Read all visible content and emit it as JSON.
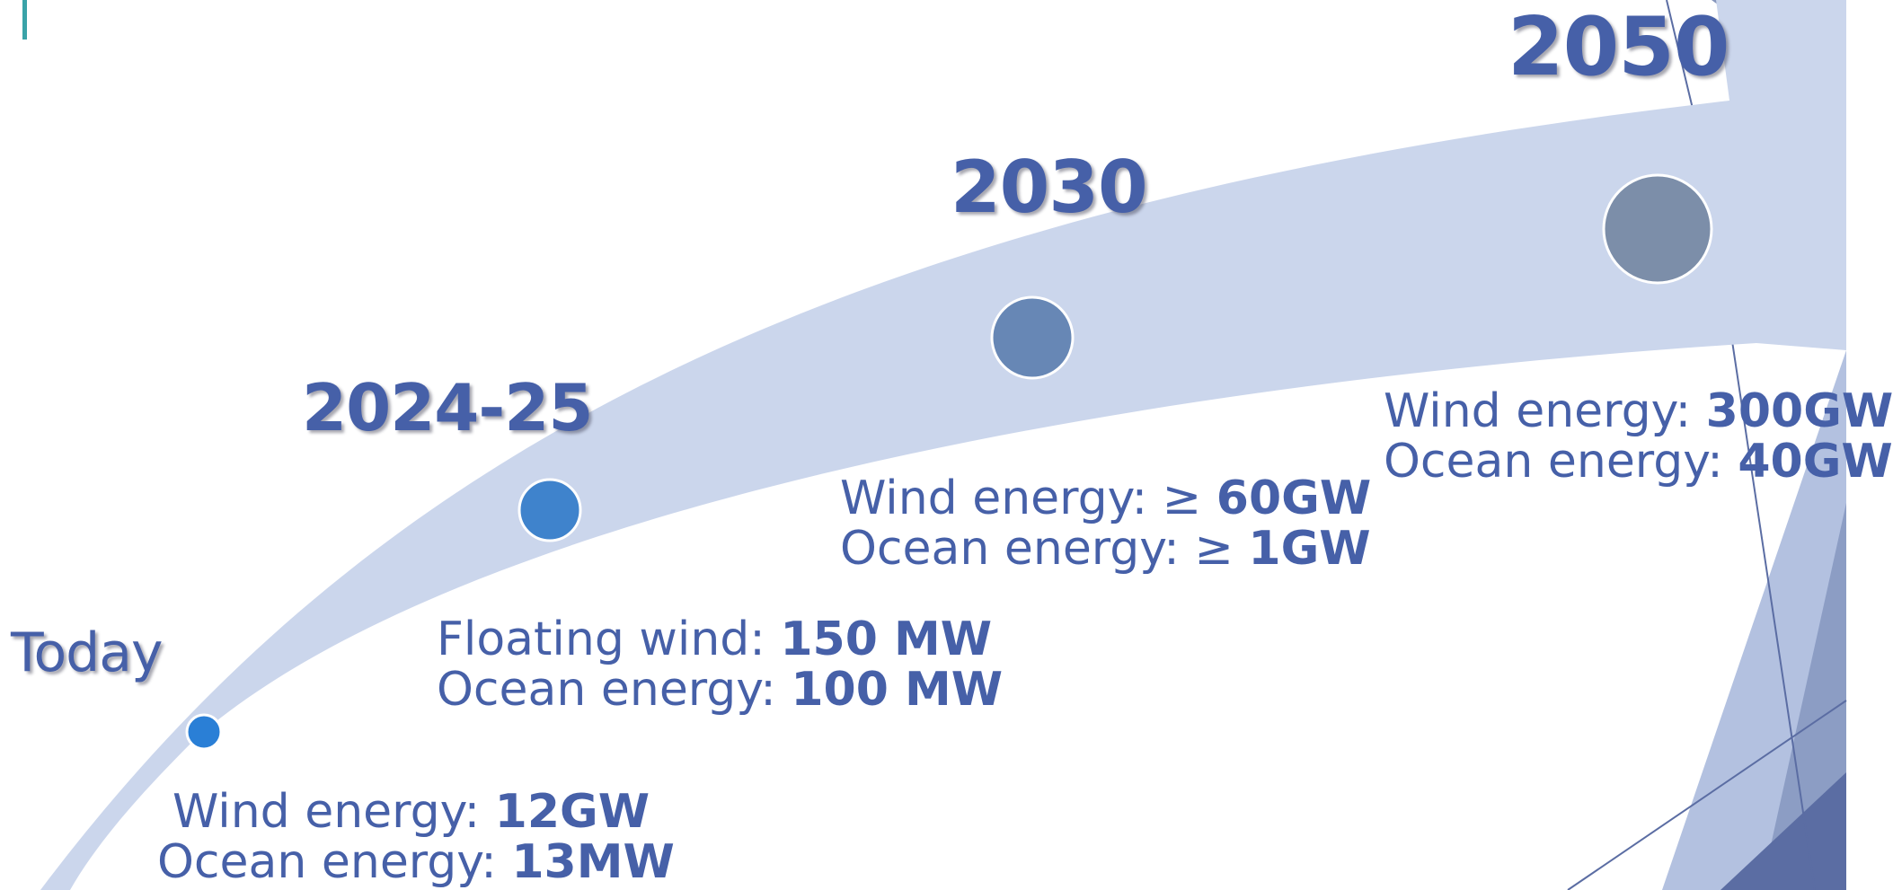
{
  "milestones": [
    {
      "label": "Today",
      "lines": [
        {
          "prefix": "Wind energy: ",
          "value": "12GW"
        },
        {
          "prefix": "Ocean energy: ",
          "value": "13MW"
        }
      ]
    },
    {
      "label": "2024-25",
      "lines": [
        {
          "prefix": "Floating wind: ",
          "value": "150 MW"
        },
        {
          "prefix": "Ocean energy: ",
          "value": "100 MW"
        }
      ]
    },
    {
      "label": "2030",
      "lines": [
        {
          "prefix": "Wind energy: ≥ ",
          "value": "60GW"
        },
        {
          "prefix": "Ocean energy: ≥ ",
          "value": "1GW"
        }
      ]
    },
    {
      "label": "2050",
      "lines": [
        {
          "prefix": "Wind energy: ",
          "value": "300GW"
        },
        {
          "prefix": "Ocean energy: ",
          "value": "40GW"
        }
      ]
    }
  ],
  "colors": {
    "text": "#4660a8",
    "arrow": "#cbd6ec",
    "dot_today": "#2a7fd6",
    "dot_2024": "#3f83cc",
    "dot_2030": "#6787b5",
    "dot_2050": "#7c8ea9",
    "accent_bar": "#3aa3a8",
    "decor_dark": "#5b6da3",
    "decor_mid": "#8c9dc4",
    "decor_light": "#b3c1e0"
  }
}
